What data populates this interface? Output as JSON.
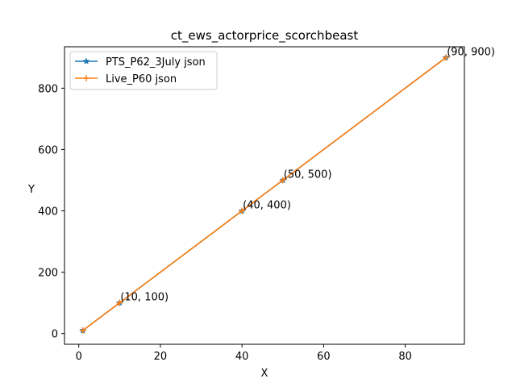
{
  "chart_data": {
    "type": "line",
    "title": "ct_ews_actorprice_scorchbeast",
    "xlabel": "X",
    "ylabel": "Y",
    "xlim": [
      -3.5,
      94.5
    ],
    "ylim": [
      -35,
      935
    ],
    "xticks": [
      0,
      20,
      40,
      60,
      80
    ],
    "yticks": [
      0,
      200,
      400,
      600,
      800
    ],
    "grid": false,
    "legend": "top-left",
    "series": [
      {
        "name": "PTS_P62_3July json",
        "color": "#1f77b4",
        "marker": "star",
        "x": [
          1,
          10,
          40,
          50,
          90
        ],
        "y": [
          10,
          100,
          400,
          500,
          900
        ]
      },
      {
        "name": "Live_P60 json",
        "color": "#ff7f0e",
        "marker": "plus",
        "x": [
          1,
          10,
          40,
          50,
          90
        ],
        "y": [
          10,
          100,
          400,
          500,
          900
        ]
      }
    ],
    "annotations": [
      {
        "text": "(10, 100)",
        "x": 10,
        "y": 100
      },
      {
        "text": "(40, 400)",
        "x": 40,
        "y": 400
      },
      {
        "text": "(50, 500)",
        "x": 50,
        "y": 500
      },
      {
        "text": "(90, 900)",
        "x": 90,
        "y": 900
      }
    ]
  }
}
